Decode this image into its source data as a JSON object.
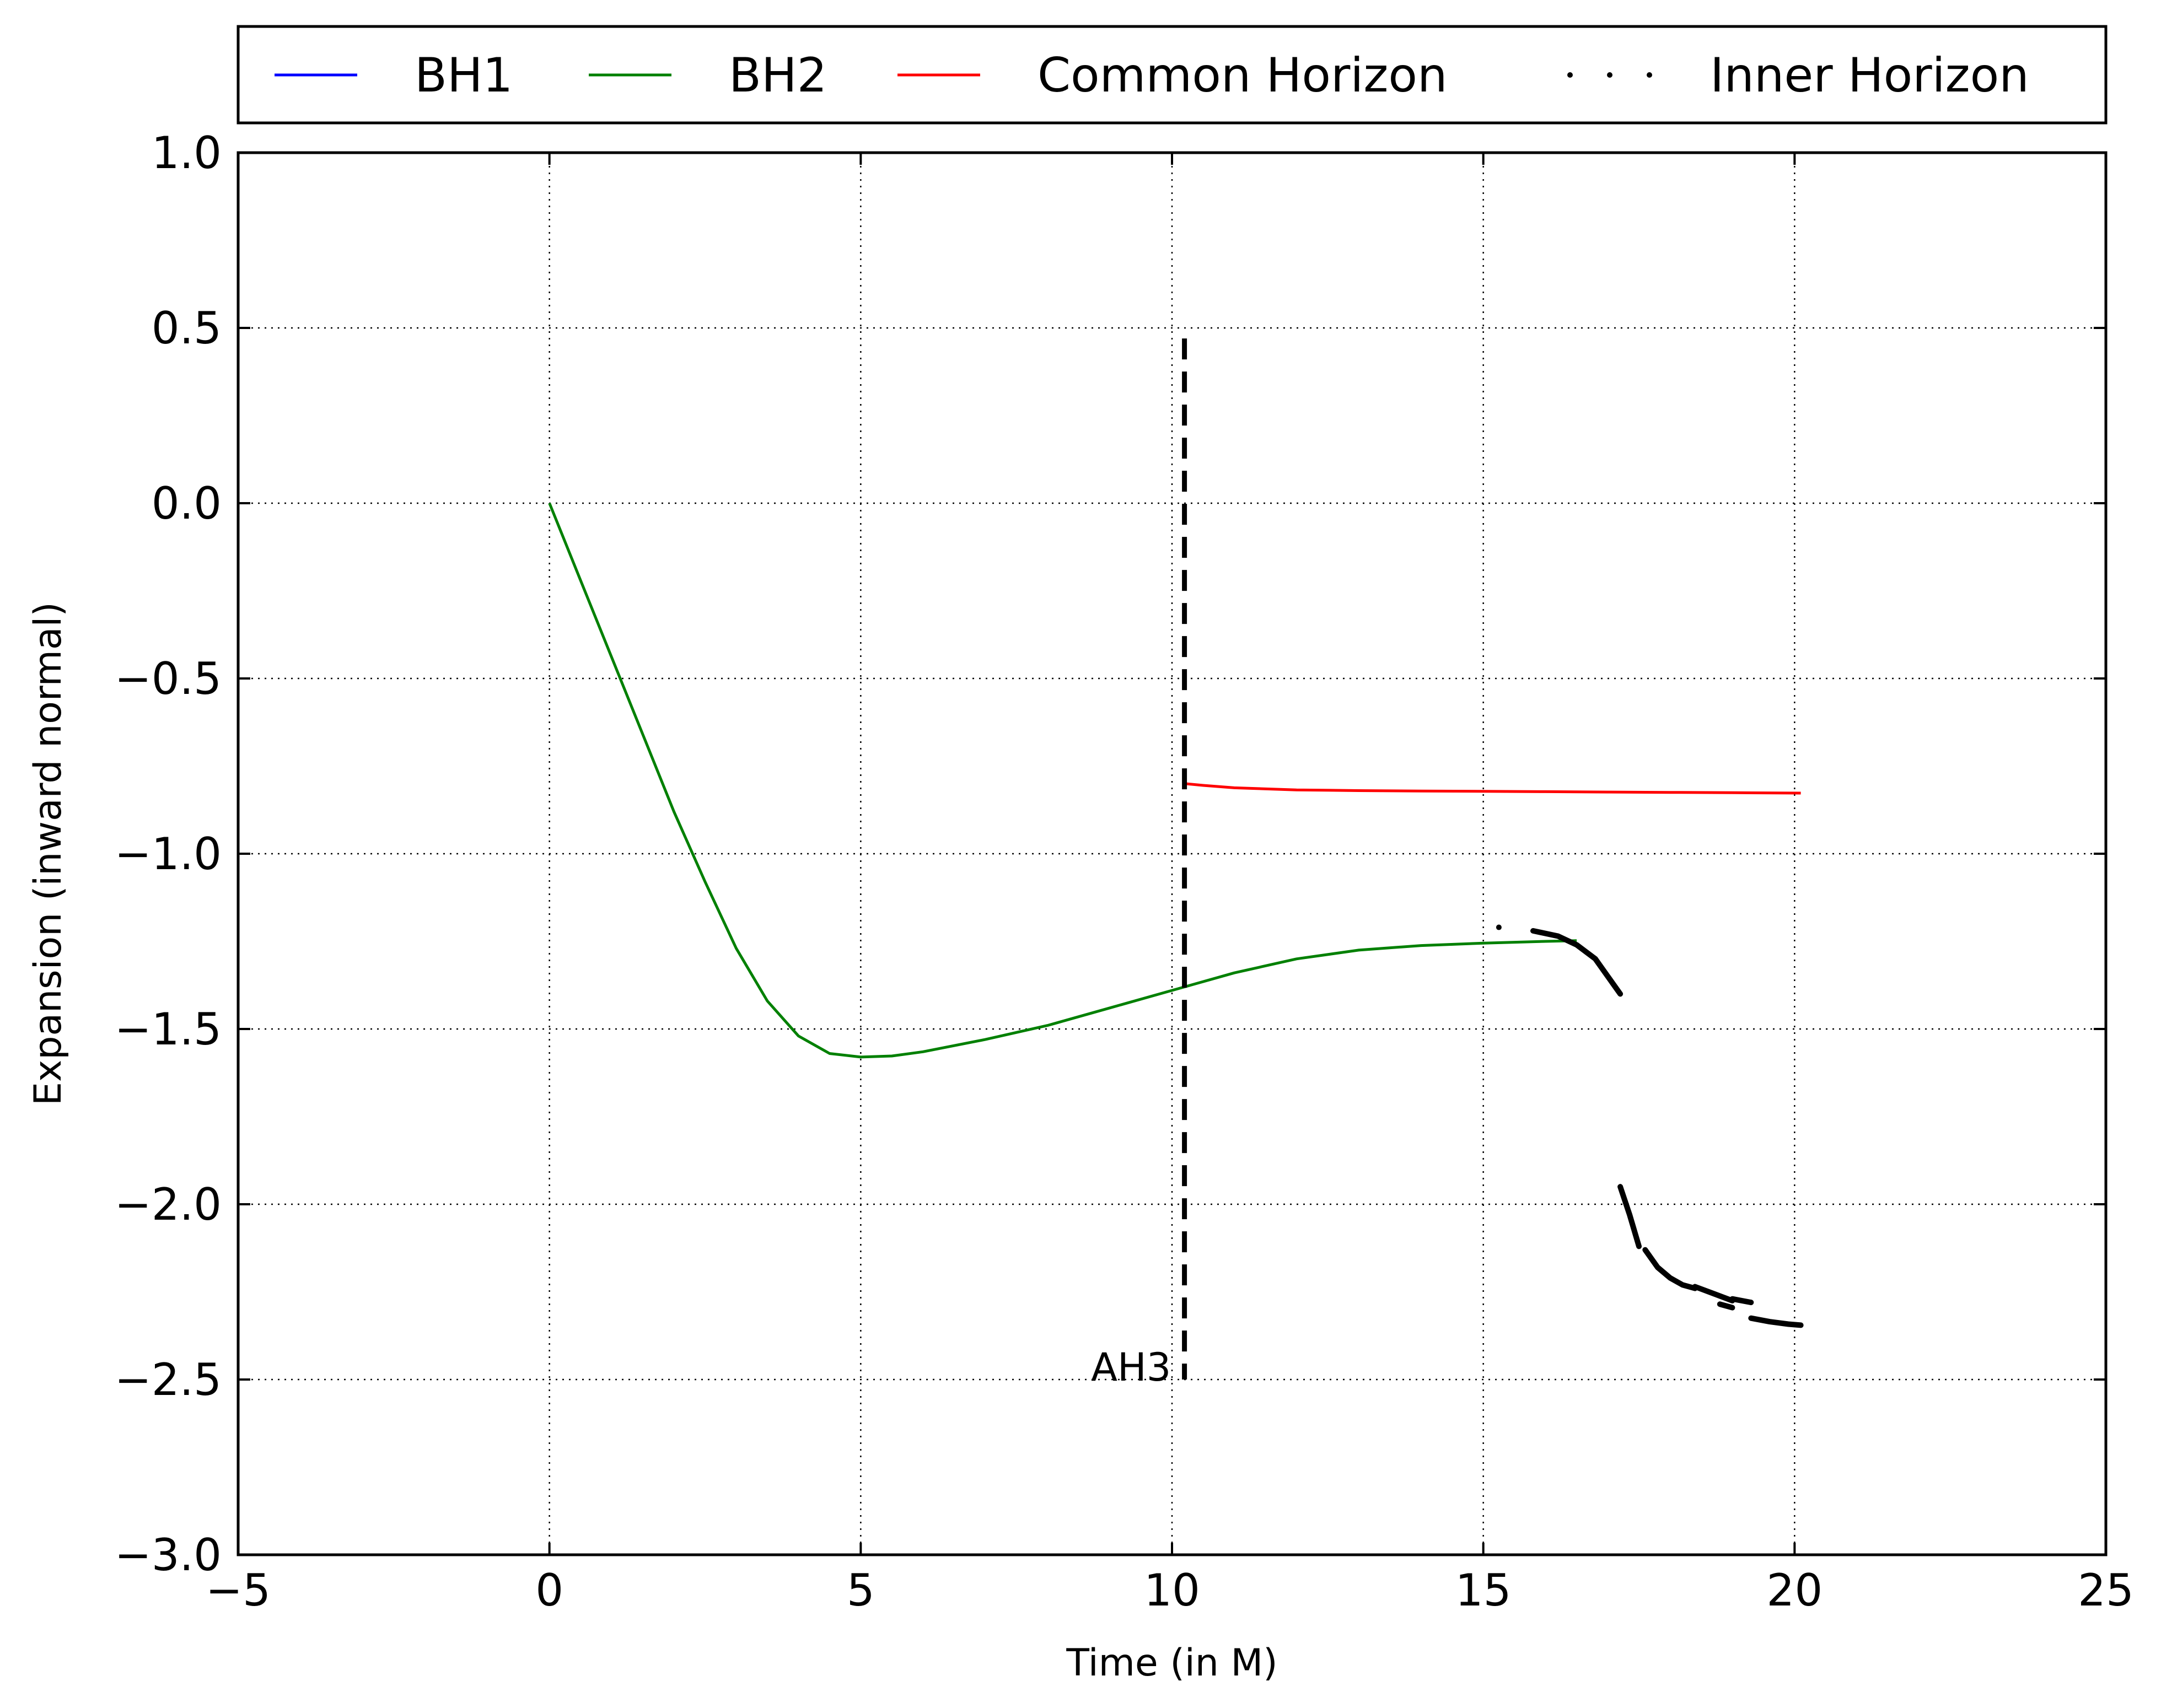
{
  "chart_data": {
    "type": "line",
    "xlabel": "Time (in M)",
    "ylabel": "Expansion (inward normal)",
    "xlim": [
      -5,
      25
    ],
    "ylim": [
      -3.0,
      1.0
    ],
    "xticks": [
      -5,
      0,
      5,
      10,
      15,
      20,
      25
    ],
    "xtick_labels": [
      "−5",
      "0",
      "5",
      "10",
      "15",
      "20",
      "25"
    ],
    "yticks": [
      1.0,
      0.5,
      0.0,
      -0.5,
      -1.0,
      -1.5,
      -2.0,
      -2.5,
      -3.0
    ],
    "ytick_labels": [
      "1.0",
      "0.5",
      "0.0",
      "−0.5",
      "−1.0",
      "−1.5",
      "−2.0",
      "−2.5",
      "−3.0"
    ],
    "grid": true,
    "legend_placement": "top, outside plot",
    "series": [
      {
        "name": "BH1",
        "color": "#0000ff",
        "style": "solid",
        "x": [],
        "y": []
      },
      {
        "name": "BH2",
        "color": "#008000",
        "style": "solid",
        "x": [
          0,
          0.5,
          1,
          1.5,
          2,
          2.5,
          3,
          3.5,
          4,
          4.5,
          5,
          5.5,
          6,
          7,
          8,
          9,
          10,
          11,
          12,
          13,
          14,
          15,
          16,
          16.5
        ],
        "y": [
          0,
          -0.22,
          -0.44,
          -0.66,
          -0.88,
          -1.08,
          -1.27,
          -1.42,
          -1.52,
          -1.57,
          -1.58,
          -1.577,
          -1.565,
          -1.53,
          -1.49,
          -1.44,
          -1.39,
          -1.34,
          -1.3,
          -1.275,
          -1.262,
          -1.255,
          -1.25,
          -1.248
        ]
      },
      {
        "name": "Common Horizon",
        "color": "#ff0000",
        "style": "solid",
        "x": [
          10.2,
          10.5,
          11,
          12,
          13,
          14,
          15,
          16,
          17,
          18,
          19,
          20.1
        ],
        "y": [
          -0.8,
          -0.805,
          -0.812,
          -0.818,
          -0.82,
          -0.821,
          -0.822,
          -0.823,
          -0.824,
          -0.825,
          -0.826,
          -0.827
        ]
      },
      {
        "name": "Inner Horizon",
        "color": "#000000",
        "style": "dotted",
        "segments": [
          {
            "x": [
              15.25
            ],
            "y": [
              -1.21
            ]
          },
          {
            "x": [
              15.8,
              16.2,
              16.5,
              16.8,
              17.0,
              17.2
            ],
            "y": [
              -1.22,
              -1.235,
              -1.26,
              -1.3,
              -1.35,
              -1.4
            ]
          },
          {
            "x": [
              17.2,
              17.35,
              17.5
            ],
            "y": [
              -1.95,
              -2.03,
              -2.12
            ]
          },
          {
            "x": [
              17.6,
              17.8,
              18.0,
              18.2,
              18.4
            ],
            "y": [
              -2.13,
              -2.18,
              -2.21,
              -2.23,
              -2.24
            ]
          },
          {
            "x": [
              18.4,
              18.7,
              19.0
            ],
            "y": [
              -2.235,
              -2.255,
              -2.275
            ]
          },
          {
            "x": [
              18.8,
              19.0
            ],
            "y": [
              -2.285,
              -2.295
            ]
          },
          {
            "x": [
              19.0,
              19.3
            ],
            "y": [
              -2.27,
              -2.28
            ]
          },
          {
            "x": [
              19.3,
              19.6,
              19.9,
              20.1
            ],
            "y": [
              -2.325,
              -2.335,
              -2.342,
              -2.345
            ]
          }
        ]
      }
    ],
    "vline": {
      "x": 10.2,
      "y_from": 0.47,
      "y_to": -2.5,
      "style": "dashed",
      "color": "#000000"
    },
    "annotations": [
      {
        "text": "AH3",
        "x": 8.7,
        "y": -2.5
      }
    ]
  }
}
